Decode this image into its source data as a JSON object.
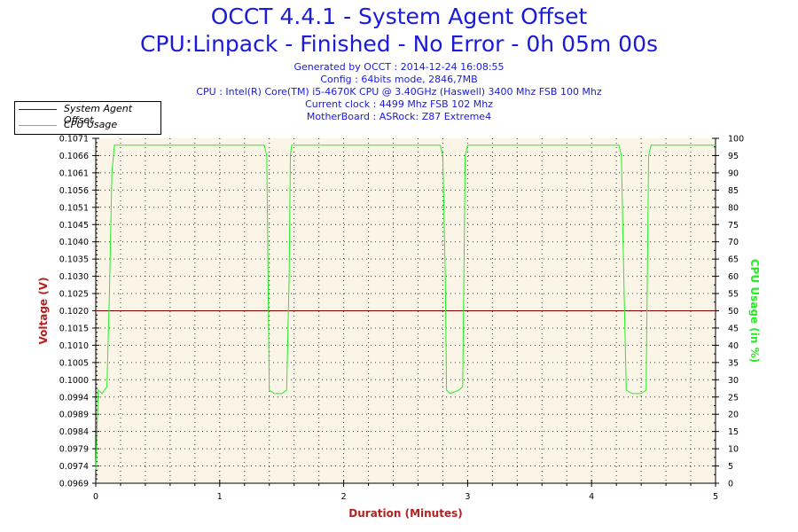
{
  "header": {
    "title": "OCCT 4.4.1 - System Agent Offset",
    "subtitle": "CPU:Linpack - Finished - No Error - 0h 05m 00s",
    "info_lines": [
      "Generated by OCCT : 2014-12-24 16:08:55",
      "Config : 64bits mode, 2846,7MB",
      "CPU : Intel(R) Core(TM) i5-4670K CPU @ 3.40GHz (Haswell) 3400 Mhz FSB 100 Mhz",
      "Current clock : 4499 Mhz FSB 102 Mhz",
      "MotherBoard : ASRock: Z87 Extreme4"
    ]
  },
  "colors": {
    "title": "#1a1adb",
    "voltage_series": "#800000",
    "cpu_series": "#22ee22",
    "plot_bg": "#fbf5e8",
    "left_axis_label": "#b22222",
    "right_axis_label": "#22ee22",
    "x_axis_label": "#b22222"
  },
  "chart_data": {
    "type": "line",
    "xlabel": "Duration (Minutes)",
    "ylabel_left": "Voltage (V)",
    "ylabel_right": "CPU Usage (in %)",
    "xlim": [
      0,
      5
    ],
    "ylim_left": [
      0.0969,
      0.1071
    ],
    "ylim_right": [
      0,
      100
    ],
    "x_ticks": [
      "0",
      "1",
      "2",
      "3",
      "4",
      "5"
    ],
    "y_left_ticks": [
      "0.0969",
      "0.0974",
      "0.0979",
      "0.0984",
      "0.0989",
      "0.0994",
      "0.1000",
      "0.1005",
      "0.1010",
      "0.1015",
      "0.1020",
      "0.1025",
      "0.1030",
      "0.1035",
      "0.1040",
      "0.1045",
      "0.1051",
      "0.1056",
      "0.1061",
      "0.1066",
      "0.1071"
    ],
    "y_right_ticks": [
      "0",
      "5",
      "10",
      "15",
      "20",
      "25",
      "30",
      "35",
      "40",
      "45",
      "50",
      "55",
      "60",
      "65",
      "70",
      "75",
      "80",
      "85",
      "90",
      "95",
      "100"
    ],
    "grid": true,
    "legend_position": "top-left",
    "series": [
      {
        "name": "System Agent Offset",
        "axis": "left",
        "x": [
          0,
          5
        ],
        "y": [
          0.102,
          0.102
        ]
      },
      {
        "name": "CPU Usage",
        "axis": "right",
        "x": [
          0,
          0.02,
          0.05,
          0.09,
          0.11,
          0.13,
          0.15,
          0.2,
          0.5,
          1.0,
          1.3,
          1.36,
          1.38,
          1.39,
          1.4,
          1.44,
          1.5,
          1.54,
          1.56,
          1.57,
          1.58,
          1.6,
          2.0,
          2.5,
          2.78,
          2.8,
          2.82,
          2.83,
          2.86,
          2.93,
          2.96,
          2.97,
          2.98,
          3.0,
          3.5,
          4.0,
          4.22,
          4.24,
          4.26,
          4.28,
          4.33,
          4.4,
          4.44,
          4.45,
          4.46,
          4.48,
          4.5,
          4.8,
          5.0
        ],
        "y": [
          4,
          27,
          26,
          28,
          55,
          90,
          98,
          98,
          98,
          98,
          98,
          98,
          95,
          60,
          27,
          26,
          26,
          27,
          60,
          95,
          98,
          98,
          98,
          98,
          98,
          95,
          60,
          27,
          26,
          27,
          28,
          60,
          95,
          98,
          98,
          98,
          98,
          95,
          60,
          27,
          26,
          26,
          27,
          60,
          95,
          98,
          98,
          98,
          98
        ]
      }
    ]
  }
}
